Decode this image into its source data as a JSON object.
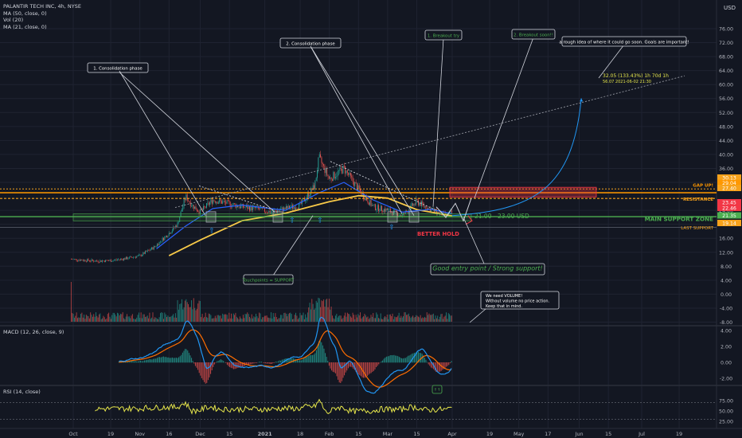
{
  "legend": {
    "symbol_line": "PALANTIR TECH INC, 4h, NYSE",
    "ma50": "MA (50, close, 0)",
    "vol": "Vol (20)",
    "ma21": "MA (21, close, 0)"
  },
  "currency": "USD",
  "macd_legend": "MACD (12, 26, close, 9)",
  "rsi_legend": "RSI (14, close)",
  "price_ticks": [
    "76.00",
    "72.00",
    "68.00",
    "64.00",
    "60.00",
    "56.00",
    "52.00",
    "48.00",
    "44.00",
    "40.00",
    "36.00",
    "32.00",
    "24.00",
    "20.00",
    "16.00",
    "12.00",
    "8.00",
    "4.00",
    "0.00",
    "-4.00",
    "-8.00"
  ],
  "macd_ticks": [
    "4.00",
    "2.00",
    "0.00",
    "-2.00"
  ],
  "rsi_ticks": [
    "75.00",
    "50.00",
    "25.00"
  ],
  "time_ticks": [
    "Oct",
    "19",
    "Nov",
    "16",
    "Dec",
    "15",
    "2021",
    "18",
    "Feb",
    "15",
    "Mar",
    "15",
    "Apr",
    "19",
    "May",
    "17",
    "Jun",
    "15",
    "Jul",
    "19"
  ],
  "price_tags": [
    {
      "text": "30.13",
      "color": "#f7a21b",
      "bg": "#f7a21b"
    },
    {
      "text": "29.04",
      "color": "#ff9800",
      "bg": "#ff9800"
    },
    {
      "text": "27.40",
      "color": "#f7a21b",
      "bg": "#f7a21b"
    },
    {
      "text": "23.45",
      "color": "#f23645",
      "bg": "#f23645"
    },
    {
      "text": "22.46",
      "color": "#f23645",
      "bg": "#f23645"
    },
    {
      "text": "21.35",
      "color": "#4caf50",
      "bg": "#4caf50"
    },
    {
      "text": "19.14",
      "color": "#f7a21b",
      "bg": "#f7a21b"
    }
  ],
  "level_labels": {
    "gap_up": "GAP UP!",
    "resistance": "RESISTANCE",
    "main_support": "MAIN SUPPORT ZONE",
    "last_support": "LAST SUPPORT",
    "zone_label": "21.00 - 23.00 USD",
    "better_hold": "BETTER HOLD",
    "good_entry": "Good entry point / Strong support!",
    "touchpoints": "Touchpoints = SUPPORT"
  },
  "callouts": {
    "consolidation1": "1. Consolidation phase",
    "consolidation2": "2. Consolidation phase",
    "breakout_try": "1. Breakout try",
    "breakout_soon": "2. Breakout soon!!",
    "rough_idea": "a rough idea of where it could go soon. Goals  are important!",
    "target_line1": "32.05 (133.43%) 1h 70d 1h",
    "target_line2": "56.07  2021-06-02  21:30",
    "volume_note_1": "We need VOLUME!",
    "volume_note_2": "Without volume no price action.",
    "volume_note_3": "Keep that in mind."
  },
  "colors": {
    "background": "#131722",
    "grid": "#1f2331",
    "candle_up": "#26a69a",
    "candle_down": "#ef5350",
    "ma50": "#f7c948",
    "ma21": "#2962ff",
    "macd": "#2196f3",
    "signal": "#ff6d00",
    "rsi": "#e5e54b",
    "support_green": "#4caf50",
    "resistance_orange": "#f7a21b"
  },
  "chart_data": {
    "type": "line",
    "title": "PALANTIR TECH INC, 4h, NYSE",
    "xlabel": "",
    "ylabel": "USD",
    "ylim": [
      -10,
      78
    ],
    "levels": {
      "gap_up": 30.13,
      "gap_up_lower": 29.04,
      "resistance": 27.4,
      "support_high": 23.0,
      "support_low": 21.0,
      "last_support": 19.14
    },
    "price_path": [
      {
        "x": "2020-09-30",
        "y": 10
      },
      {
        "x": "2020-10-05",
        "y": 9.8
      },
      {
        "x": "2020-10-12",
        "y": 9.5
      },
      {
        "x": "2020-10-19",
        "y": 9.6
      },
      {
        "x": "2020-10-26",
        "y": 10.2
      },
      {
        "x": "2020-11-02",
        "y": 11.0
      },
      {
        "x": "2020-11-09",
        "y": 13.5
      },
      {
        "x": "2020-11-16",
        "y": 17.5
      },
      {
        "x": "2020-11-20",
        "y": 20
      },
      {
        "x": "2020-11-24",
        "y": 28
      },
      {
        "x": "2020-11-27",
        "y": 25.5
      },
      {
        "x": "2020-12-01",
        "y": 23.5
      },
      {
        "x": "2020-12-07",
        "y": 27
      },
      {
        "x": "2020-12-14",
        "y": 26
      },
      {
        "x": "2020-12-21",
        "y": 25
      },
      {
        "x": "2020-12-28",
        "y": 24.5
      },
      {
        "x": "2021-01-04",
        "y": 23.5
      },
      {
        "x": "2021-01-11",
        "y": 24.5
      },
      {
        "x": "2021-01-18",
        "y": 25.5
      },
      {
        "x": "2021-01-25",
        "y": 31
      },
      {
        "x": "2021-01-27",
        "y": 39
      },
      {
        "x": "2021-02-01",
        "y": 33
      },
      {
        "x": "2021-02-08",
        "y": 36
      },
      {
        "x": "2021-02-15",
        "y": 30
      },
      {
        "x": "2021-02-22",
        "y": 25
      },
      {
        "x": "2021-03-01",
        "y": 24
      },
      {
        "x": "2021-03-08",
        "y": 22.5
      },
      {
        "x": "2021-03-15",
        "y": 26.5
      },
      {
        "x": "2021-03-22",
        "y": 24
      },
      {
        "x": "2021-03-29",
        "y": 22.5
      },
      {
        "x": "2021-04-01",
        "y": 23.45
      }
    ],
    "ma50": [
      {
        "x": "2020-11-16",
        "y": 11
      },
      {
        "x": "2020-12-01",
        "y": 15.5
      },
      {
        "x": "2020-12-21",
        "y": 21
      },
      {
        "x": "2021-01-11",
        "y": 23.2
      },
      {
        "x": "2021-02-01",
        "y": 26.5
      },
      {
        "x": "2021-02-15",
        "y": 28.2
      },
      {
        "x": "2021-03-01",
        "y": 27.5
      },
      {
        "x": "2021-03-15",
        "y": 24.2
      },
      {
        "x": "2021-04-01",
        "y": 22.4
      }
    ],
    "ma21": [
      {
        "x": "2020-11-10",
        "y": 13
      },
      {
        "x": "2020-11-24",
        "y": 19.5
      },
      {
        "x": "2020-12-07",
        "y": 24.5
      },
      {
        "x": "2020-12-21",
        "y": 25.5
      },
      {
        "x": "2021-01-11",
        "y": 24
      },
      {
        "x": "2021-01-27",
        "y": 29
      },
      {
        "x": "2021-02-08",
        "y": 32
      },
      {
        "x": "2021-02-22",
        "y": 27
      },
      {
        "x": "2021-03-08",
        "y": 23.5
      },
      {
        "x": "2021-03-22",
        "y": 24.3
      },
      {
        "x": "2021-04-01",
        "y": 23
      }
    ],
    "projection": [
      {
        "x": "2021-04-01",
        "y": 22.5
      },
      {
        "x": "2021-04-20",
        "y": 24
      },
      {
        "x": "2021-05-10",
        "y": 30
      },
      {
        "x": "2021-05-25",
        "y": 40
      },
      {
        "x": "2021-06-02",
        "y": 56.07
      }
    ]
  }
}
